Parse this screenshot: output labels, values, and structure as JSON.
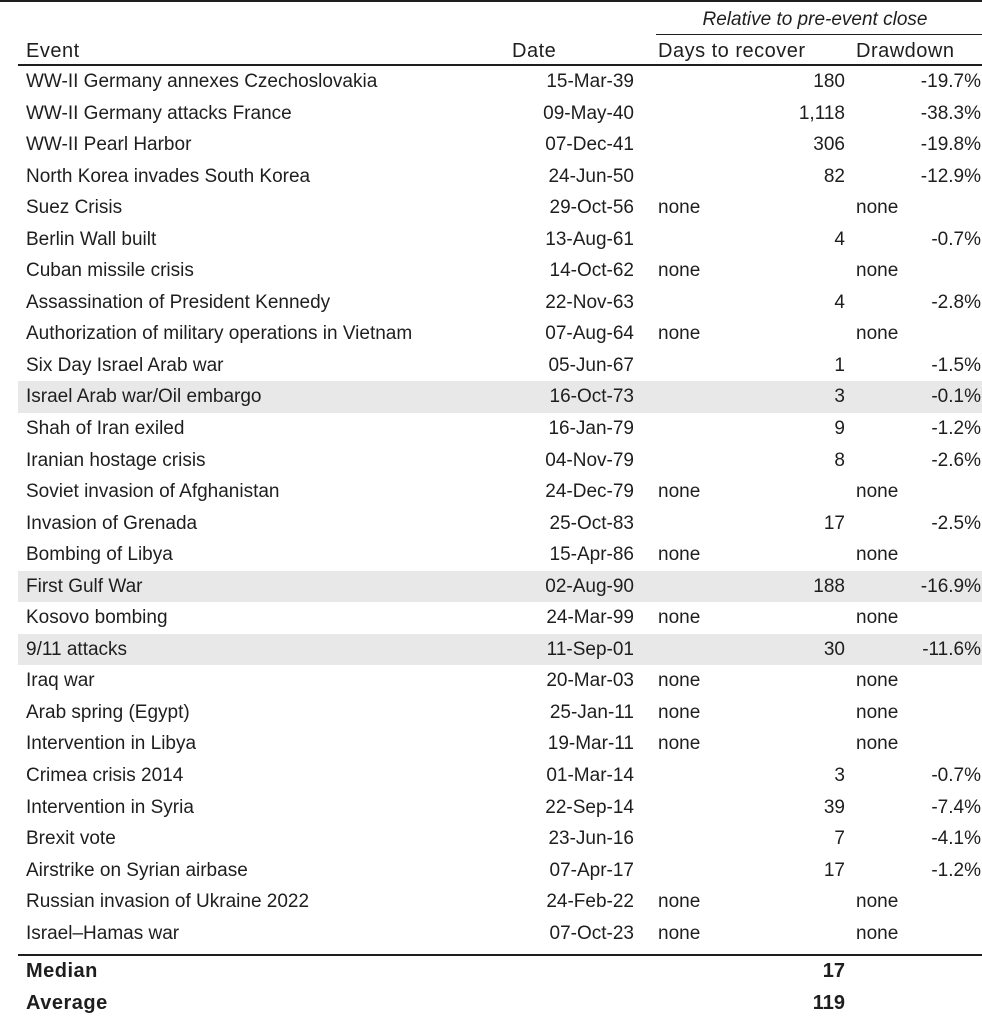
{
  "table": {
    "group_header": "Relative to pre-event close",
    "columns": {
      "event": "Event",
      "date": "Date",
      "days": "Days to recover",
      "drawdown": "Drawdown"
    },
    "rows": [
      {
        "event": "WW-II Germany annexes Czechoslovakia",
        "date": "15-Mar-39",
        "days": "180",
        "drawdown": "-19.7%",
        "shaded": false
      },
      {
        "event": "WW-II Germany attacks France",
        "date": "09-May-40",
        "days": "1,118",
        "drawdown": "-38.3%",
        "shaded": false
      },
      {
        "event": "WW-II Pearl Harbor",
        "date": "07-Dec-41",
        "days": "306",
        "drawdown": "-19.8%",
        "shaded": false
      },
      {
        "event": "North Korea invades South Korea",
        "date": "24-Jun-50",
        "days": "82",
        "drawdown": "-12.9%",
        "shaded": false
      },
      {
        "event": "Suez Crisis",
        "date": "29-Oct-56",
        "days": "none",
        "drawdown": "none",
        "shaded": false
      },
      {
        "event": "Berlin Wall built",
        "date": "13-Aug-61",
        "days": "4",
        "drawdown": "-0.7%",
        "shaded": false
      },
      {
        "event": "Cuban missile crisis",
        "date": "14-Oct-62",
        "days": "none",
        "drawdown": "none",
        "shaded": false
      },
      {
        "event": "Assassination of President Kennedy",
        "date": "22-Nov-63",
        "days": "4",
        "drawdown": "-2.8%",
        "shaded": false
      },
      {
        "event": "Authorization of military operations in Vietnam",
        "date": "07-Aug-64",
        "days": "none",
        "drawdown": "none",
        "shaded": false
      },
      {
        "event": "Six Day Israel Arab war",
        "date": "05-Jun-67",
        "days": "1",
        "drawdown": "-1.5%",
        "shaded": false
      },
      {
        "event": "Israel Arab war/Oil embargo",
        "date": "16-Oct-73",
        "days": "3",
        "drawdown": "-0.1%",
        "shaded": true
      },
      {
        "event": "Shah of Iran exiled",
        "date": "16-Jan-79",
        "days": "9",
        "drawdown": "-1.2%",
        "shaded": false
      },
      {
        "event": "Iranian hostage crisis",
        "date": "04-Nov-79",
        "days": "8",
        "drawdown": "-2.6%",
        "shaded": false
      },
      {
        "event": "Soviet invasion of Afghanistan",
        "date": "24-Dec-79",
        "days": "none",
        "drawdown": "none",
        "shaded": false
      },
      {
        "event": "Invasion of Grenada",
        "date": "25-Oct-83",
        "days": "17",
        "drawdown": "-2.5%",
        "shaded": false
      },
      {
        "event": "Bombing of Libya",
        "date": "15-Apr-86",
        "days": "none",
        "drawdown": "none",
        "shaded": false
      },
      {
        "event": "First Gulf War",
        "date": "02-Aug-90",
        "days": "188",
        "drawdown": "-16.9%",
        "shaded": true
      },
      {
        "event": "Kosovo bombing",
        "date": "24-Mar-99",
        "days": "none",
        "drawdown": "none",
        "shaded": false
      },
      {
        "event": "9/11 attacks",
        "date": "11-Sep-01",
        "days": "30",
        "drawdown": "-11.6%",
        "shaded": true
      },
      {
        "event": "Iraq war",
        "date": "20-Mar-03",
        "days": "none",
        "drawdown": "none",
        "shaded": false
      },
      {
        "event": "Arab spring (Egypt)",
        "date": "25-Jan-11",
        "days": "none",
        "drawdown": "none",
        "shaded": false
      },
      {
        "event": "Intervention in Libya",
        "date": "19-Mar-11",
        "days": "none",
        "drawdown": "none",
        "shaded": false
      },
      {
        "event": "Crimea crisis 2014",
        "date": "01-Mar-14",
        "days": "3",
        "drawdown": "-0.7%",
        "shaded": false
      },
      {
        "event": "Intervention in Syria",
        "date": "22-Sep-14",
        "days": "39",
        "drawdown": "-7.4%",
        "shaded": false
      },
      {
        "event": "Brexit vote",
        "date": "23-Jun-16",
        "days": "7",
        "drawdown": "-4.1%",
        "shaded": false
      },
      {
        "event": "Airstrike on Syrian airbase",
        "date": "07-Apr-17",
        "days": "17",
        "drawdown": "-1.2%",
        "shaded": false
      },
      {
        "event": "Russian invasion of Ukraine 2022",
        "date": "24-Feb-22",
        "days": "none",
        "drawdown": "none",
        "shaded": false
      },
      {
        "event": "Israel–Hamas war",
        "date": "07-Oct-23",
        "days": "none",
        "drawdown": "none",
        "shaded": false
      }
    ],
    "summary": [
      {
        "label": "Median",
        "days": "17"
      },
      {
        "label": "Average",
        "days": "119"
      }
    ]
  }
}
